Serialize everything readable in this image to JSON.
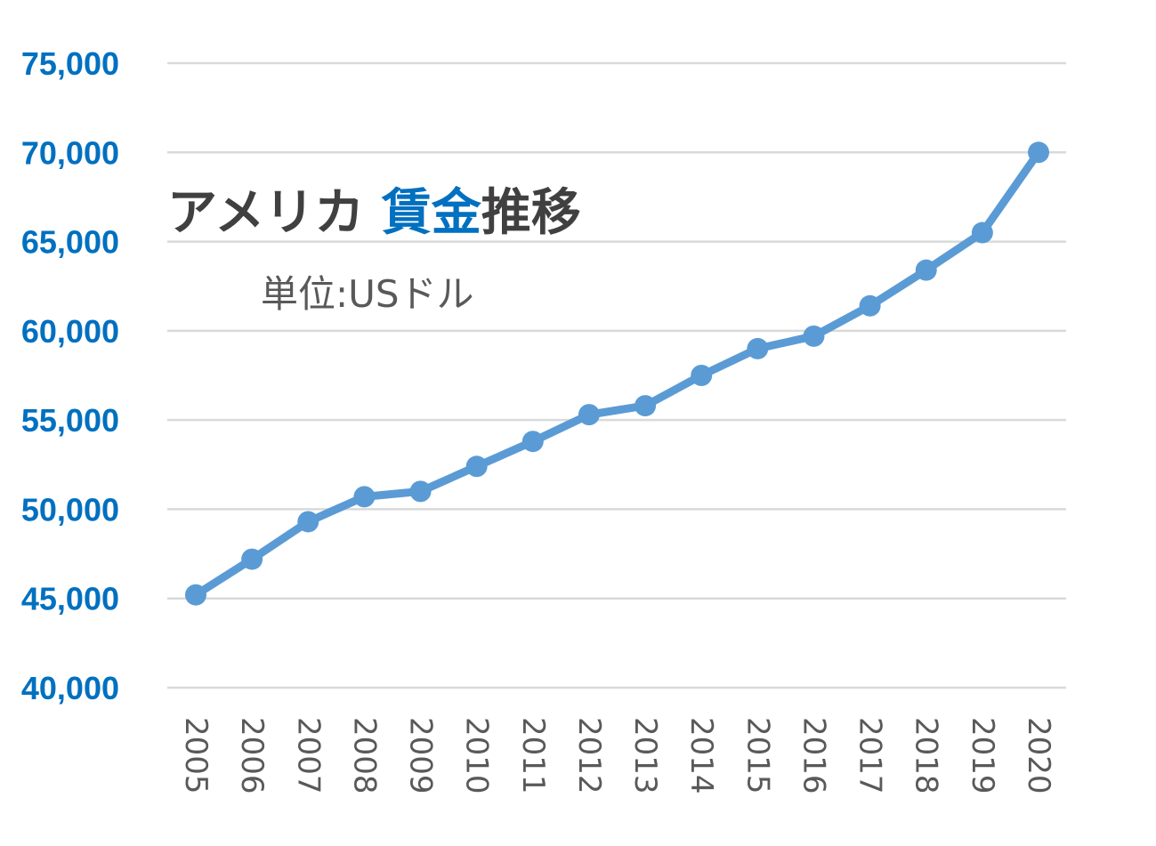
{
  "colors": {
    "line": "#5b9bd5",
    "y_tick": "#0070c0",
    "x_tick": "#595959",
    "title_dark": "#404040",
    "title_accent": "#0070c0",
    "grid": "#d9d9d9"
  },
  "chart_data": {
    "type": "line",
    "title_parts": [
      {
        "text": "アメリカ ",
        "accent": false
      },
      {
        "text": "賃金",
        "accent": true
      },
      {
        "text": "推移",
        "accent": false
      }
    ],
    "unit_label": "単位:USドル",
    "grid": true,
    "ylim": [
      40000,
      75000
    ],
    "y_ticks": [
      75000,
      70000,
      65000,
      60000,
      55000,
      50000,
      45000,
      40000
    ],
    "y_tick_labels": [
      "75,000",
      "70,000",
      "65,000",
      "60,000",
      "55,000",
      "50,000",
      "45,000",
      "40,000"
    ],
    "x": [
      "2005",
      "2006",
      "2007",
      "2008",
      "2009",
      "2010",
      "2011",
      "2012",
      "2013",
      "2014",
      "2015",
      "2016",
      "2017",
      "2018",
      "2019",
      "2020"
    ],
    "values": [
      45200,
      47200,
      49300,
      50700,
      51000,
      52400,
      53800,
      55300,
      55800,
      57500,
      59000,
      59700,
      61400,
      63400,
      65500,
      70000
    ]
  }
}
